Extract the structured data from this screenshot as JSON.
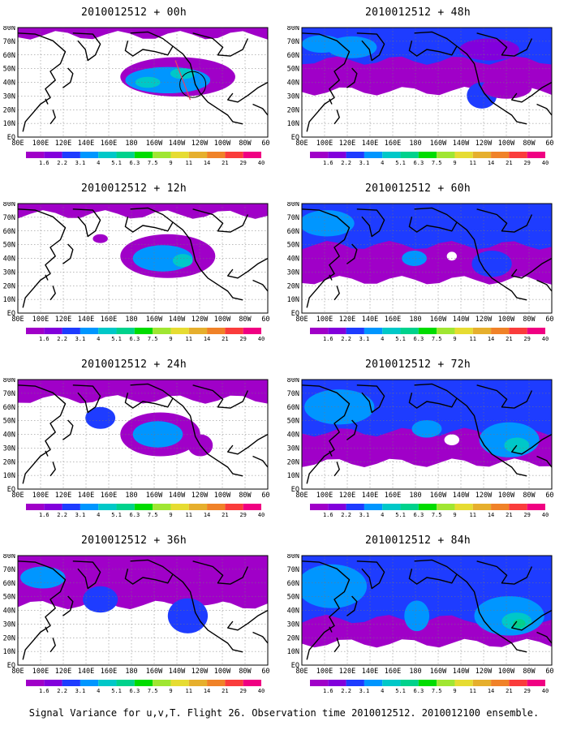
{
  "panels": [
    {
      "title": "2010012512 + 00h",
      "col": 0,
      "row": 0
    },
    {
      "title": "2010012512 + 48h",
      "col": 1,
      "row": 0
    },
    {
      "title": "2010012512 + 12h",
      "col": 0,
      "row": 1
    },
    {
      "title": "2010012512 + 60h",
      "col": 1,
      "row": 1
    },
    {
      "title": "2010012512 + 24h",
      "col": 0,
      "row": 2
    },
    {
      "title": "2010012512 + 72h",
      "col": 1,
      "row": 2
    },
    {
      "title": "2010012512 + 36h",
      "col": 0,
      "row": 3
    },
    {
      "title": "2010012512 + 84h",
      "col": 1,
      "row": 3
    }
  ],
  "lat_labels": [
    "80N",
    "70N",
    "60N",
    "50N",
    "40N",
    "30N",
    "20N",
    "10N",
    "EQ"
  ],
  "lon_labels": [
    "80E",
    "100E",
    "120E",
    "140E",
    "160E",
    "180",
    "160W",
    "140W",
    "120W",
    "100W",
    "80W",
    "60W"
  ],
  "colorbar": {
    "labels": [
      "1.6",
      "2.2",
      "3.1",
      "4",
      "5.1",
      "6.3",
      "7.5",
      "9",
      "11",
      "14",
      "21",
      "29",
      "40"
    ],
    "colors": [
      "#a000c8",
      "#8200dc",
      "#1e3cff",
      "#0096ff",
      "#00c8c8",
      "#00d28c",
      "#00dc00",
      "#a0e632",
      "#e6dc32",
      "#e6af2d",
      "#f08228",
      "#fa3c3c",
      "#f00082"
    ]
  },
  "caption": "Signal Variance for u,v,T. Flight 26. Observation time 2010012512. 2010012100 ensemble."
}
